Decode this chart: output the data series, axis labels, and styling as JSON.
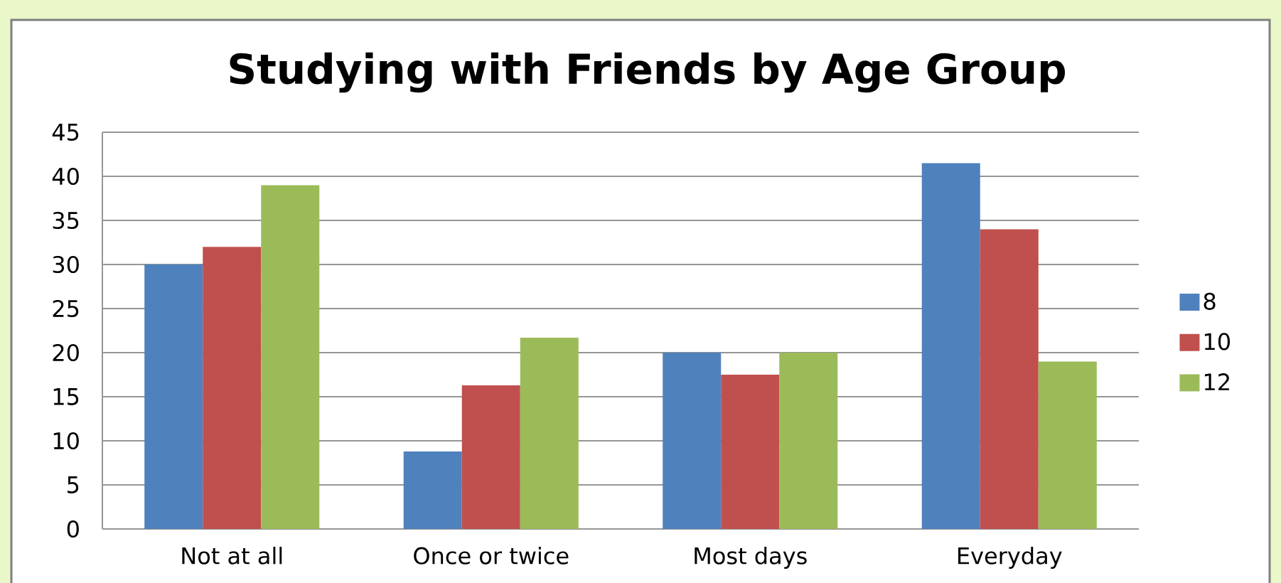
{
  "chart_data": {
    "type": "bar",
    "title": "Studying with Friends by Age Group",
    "categories": [
      "Not at all",
      "Once or twice",
      "Most days",
      "Everyday"
    ],
    "series": [
      {
        "name": "8",
        "color": "#4f81bd",
        "values": [
          30,
          8.8,
          20,
          41.5
        ]
      },
      {
        "name": "10",
        "color": "#c0504d",
        "values": [
          32,
          16.3,
          17.5,
          34
        ]
      },
      {
        "name": "12",
        "color": "#9bbb59",
        "values": [
          39,
          21.7,
          20,
          19
        ]
      }
    ],
    "ylim": [
      0,
      45
    ],
    "yticks": [
      0,
      5,
      10,
      15,
      20,
      25,
      30,
      35,
      40,
      45
    ],
    "grid": "y",
    "legend": "right"
  }
}
